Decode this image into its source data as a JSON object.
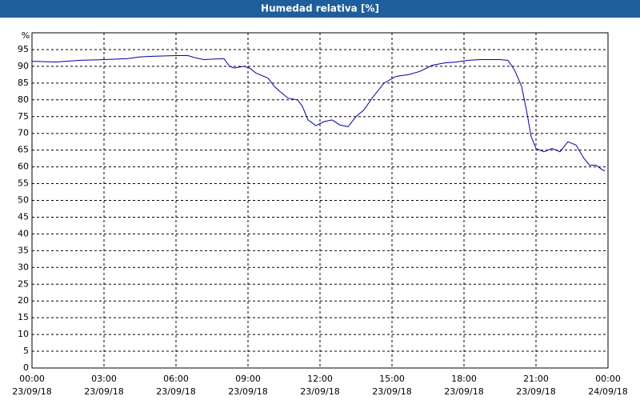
{
  "chart_data": {
    "type": "line",
    "title": "Humedad relativa [%]",
    "y_unit": "%",
    "xlim": [
      0,
      24
    ],
    "ylim": [
      0,
      100
    ],
    "yticks": [
      0,
      5,
      10,
      15,
      20,
      25,
      30,
      35,
      40,
      45,
      50,
      55,
      60,
      65,
      70,
      75,
      80,
      85,
      90,
      95
    ],
    "xticks": [
      {
        "value": 0,
        "label": "00:00",
        "date": "23/09/18"
      },
      {
        "value": 3,
        "label": "03:00",
        "date": "23/09/18"
      },
      {
        "value": 6,
        "label": "06:00",
        "date": "23/09/18"
      },
      {
        "value": 9,
        "label": "09:00",
        "date": "23/09/18"
      },
      {
        "value": 12,
        "label": "12:00",
        "date": "23/09/18"
      },
      {
        "value": 15,
        "label": "15:00",
        "date": "23/09/18"
      },
      {
        "value": 18,
        "label": "18:00",
        "date": "23/09/18"
      },
      {
        "value": 21,
        "label": "21:00",
        "date": "23/09/18"
      },
      {
        "value": 24,
        "label": "00:00",
        "date": "24/09/18"
      }
    ],
    "grid": true,
    "series": [
      {
        "color": "#0000a0",
        "x": [
          0,
          1,
          2,
          3,
          4,
          4.5,
          5,
          6,
          6.5,
          6.83,
          7.17,
          8,
          8.23,
          8.43,
          8.83,
          9.07,
          9.33,
          9.83,
          10.1,
          10.33,
          10.67,
          11.07,
          11.27,
          11.5,
          11.83,
          12.17,
          12.5,
          12.83,
          13.17,
          13.5,
          13.83,
          14.17,
          14.67,
          15.17,
          15.67,
          16.17,
          16.67,
          17.17,
          17.67,
          18.17,
          18.67,
          19.5,
          19.83,
          20.1,
          20.4,
          20.6,
          20.8,
          21,
          21.33,
          21.67,
          22,
          22.33,
          22.67,
          23,
          23.23,
          23.5,
          23.73,
          23.87
        ],
        "values": [
          91.5,
          91.3,
          91.8,
          92,
          92.3,
          92.8,
          93,
          93.2,
          93.2,
          92.5,
          92,
          92.3,
          90,
          89.5,
          90,
          89.5,
          88,
          86.5,
          84,
          82.5,
          80.5,
          80,
          78,
          74,
          72.3,
          73.5,
          74,
          72.5,
          72,
          75,
          77,
          80.5,
          85,
          87,
          87.5,
          88.5,
          90.3,
          91,
          91.3,
          91.8,
          92,
          92,
          91.8,
          89,
          84,
          77,
          69,
          65.5,
          64.5,
          65.5,
          64.5,
          67.5,
          66.5,
          62.5,
          60.5,
          60.5,
          59.3,
          58.8
        ]
      }
    ]
  }
}
